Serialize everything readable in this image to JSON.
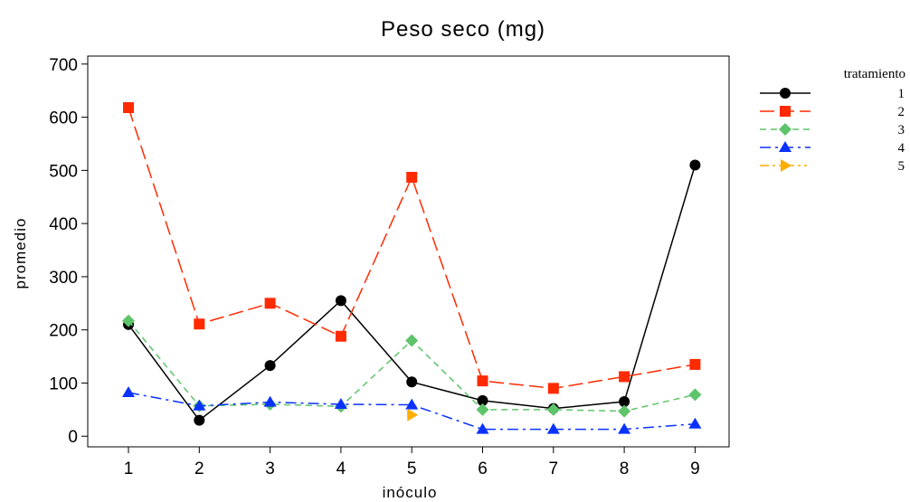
{
  "chart_data": {
    "type": "line",
    "title": "Peso seco (mg)",
    "xlabel": "inóculo",
    "ylabel": "promedio",
    "categories": [
      "1",
      "2",
      "3",
      "4",
      "5",
      "6",
      "7",
      "8",
      "9"
    ],
    "ylim": [
      -20,
      715
    ],
    "yticks": [
      "0",
      "100",
      "200",
      "300",
      "400",
      "500",
      "600",
      "700"
    ],
    "grid": false,
    "legend": {
      "title": "tratamiento",
      "position": "right"
    },
    "series": [
      {
        "name": "1",
        "color": "#000000",
        "marker": "circle",
        "dash": "solid",
        "values": [
          210,
          30,
          133,
          255,
          102,
          67,
          52,
          65,
          510
        ]
      },
      {
        "name": "2",
        "color": "#ff2a00",
        "marker": "square",
        "dash": "long-dash",
        "values": [
          618,
          211,
          250,
          188,
          487,
          104,
          90,
          112,
          135
        ]
      },
      {
        "name": "3",
        "color": "#5ec46a",
        "marker": "diamond",
        "dash": "dash",
        "values": [
          217,
          57,
          60,
          56,
          180,
          50,
          50,
          47,
          78
        ]
      },
      {
        "name": "4",
        "color": "#0a32ff",
        "marker": "triangle-up",
        "dash": "dash-dot",
        "values": [
          82,
          57,
          64,
          60,
          59,
          13,
          13,
          13,
          23
        ]
      },
      {
        "name": "5",
        "color": "#ffae00",
        "marker": "triangle-right",
        "dash": "dash-dot-dot",
        "values": [
          null,
          null,
          null,
          null,
          40,
          null,
          null,
          null,
          null
        ]
      }
    ]
  }
}
